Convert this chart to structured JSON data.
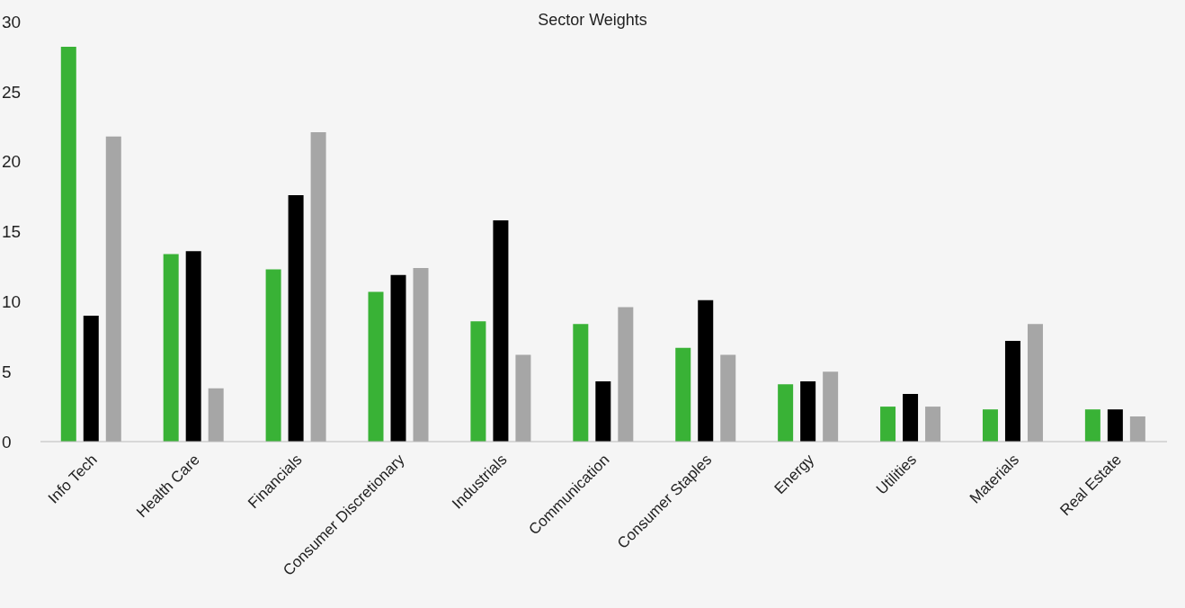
{
  "chart_data": {
    "type": "bar",
    "title": "Sector Weights",
    "categories": [
      "Info Tech",
      "Health Care",
      "Financials",
      "Consumer Discretionary",
      "Industrials",
      "Communication",
      "Consumer Staples",
      "Energy",
      "Utilities",
      "Materials",
      "Real Estate"
    ],
    "series": [
      {
        "color": "#39b236",
        "values": [
          28.2,
          13.4,
          12.3,
          10.7,
          8.6,
          8.4,
          6.7,
          4.1,
          2.5,
          2.3,
          2.3
        ]
      },
      {
        "color": "#000000",
        "values": [
          9.0,
          13.6,
          17.6,
          11.9,
          15.8,
          4.3,
          10.1,
          4.3,
          3.4,
          7.2,
          2.3
        ]
      },
      {
        "color": "#a6a6a6",
        "values": [
          21.8,
          3.8,
          22.1,
          12.4,
          6.2,
          9.6,
          6.2,
          5.0,
          2.5,
          8.4,
          1.8
        ]
      }
    ],
    "ylim": [
      0,
      30
    ],
    "yticks": [
      0,
      5,
      10,
      15,
      20,
      25,
      30
    ],
    "grid": false
  }
}
